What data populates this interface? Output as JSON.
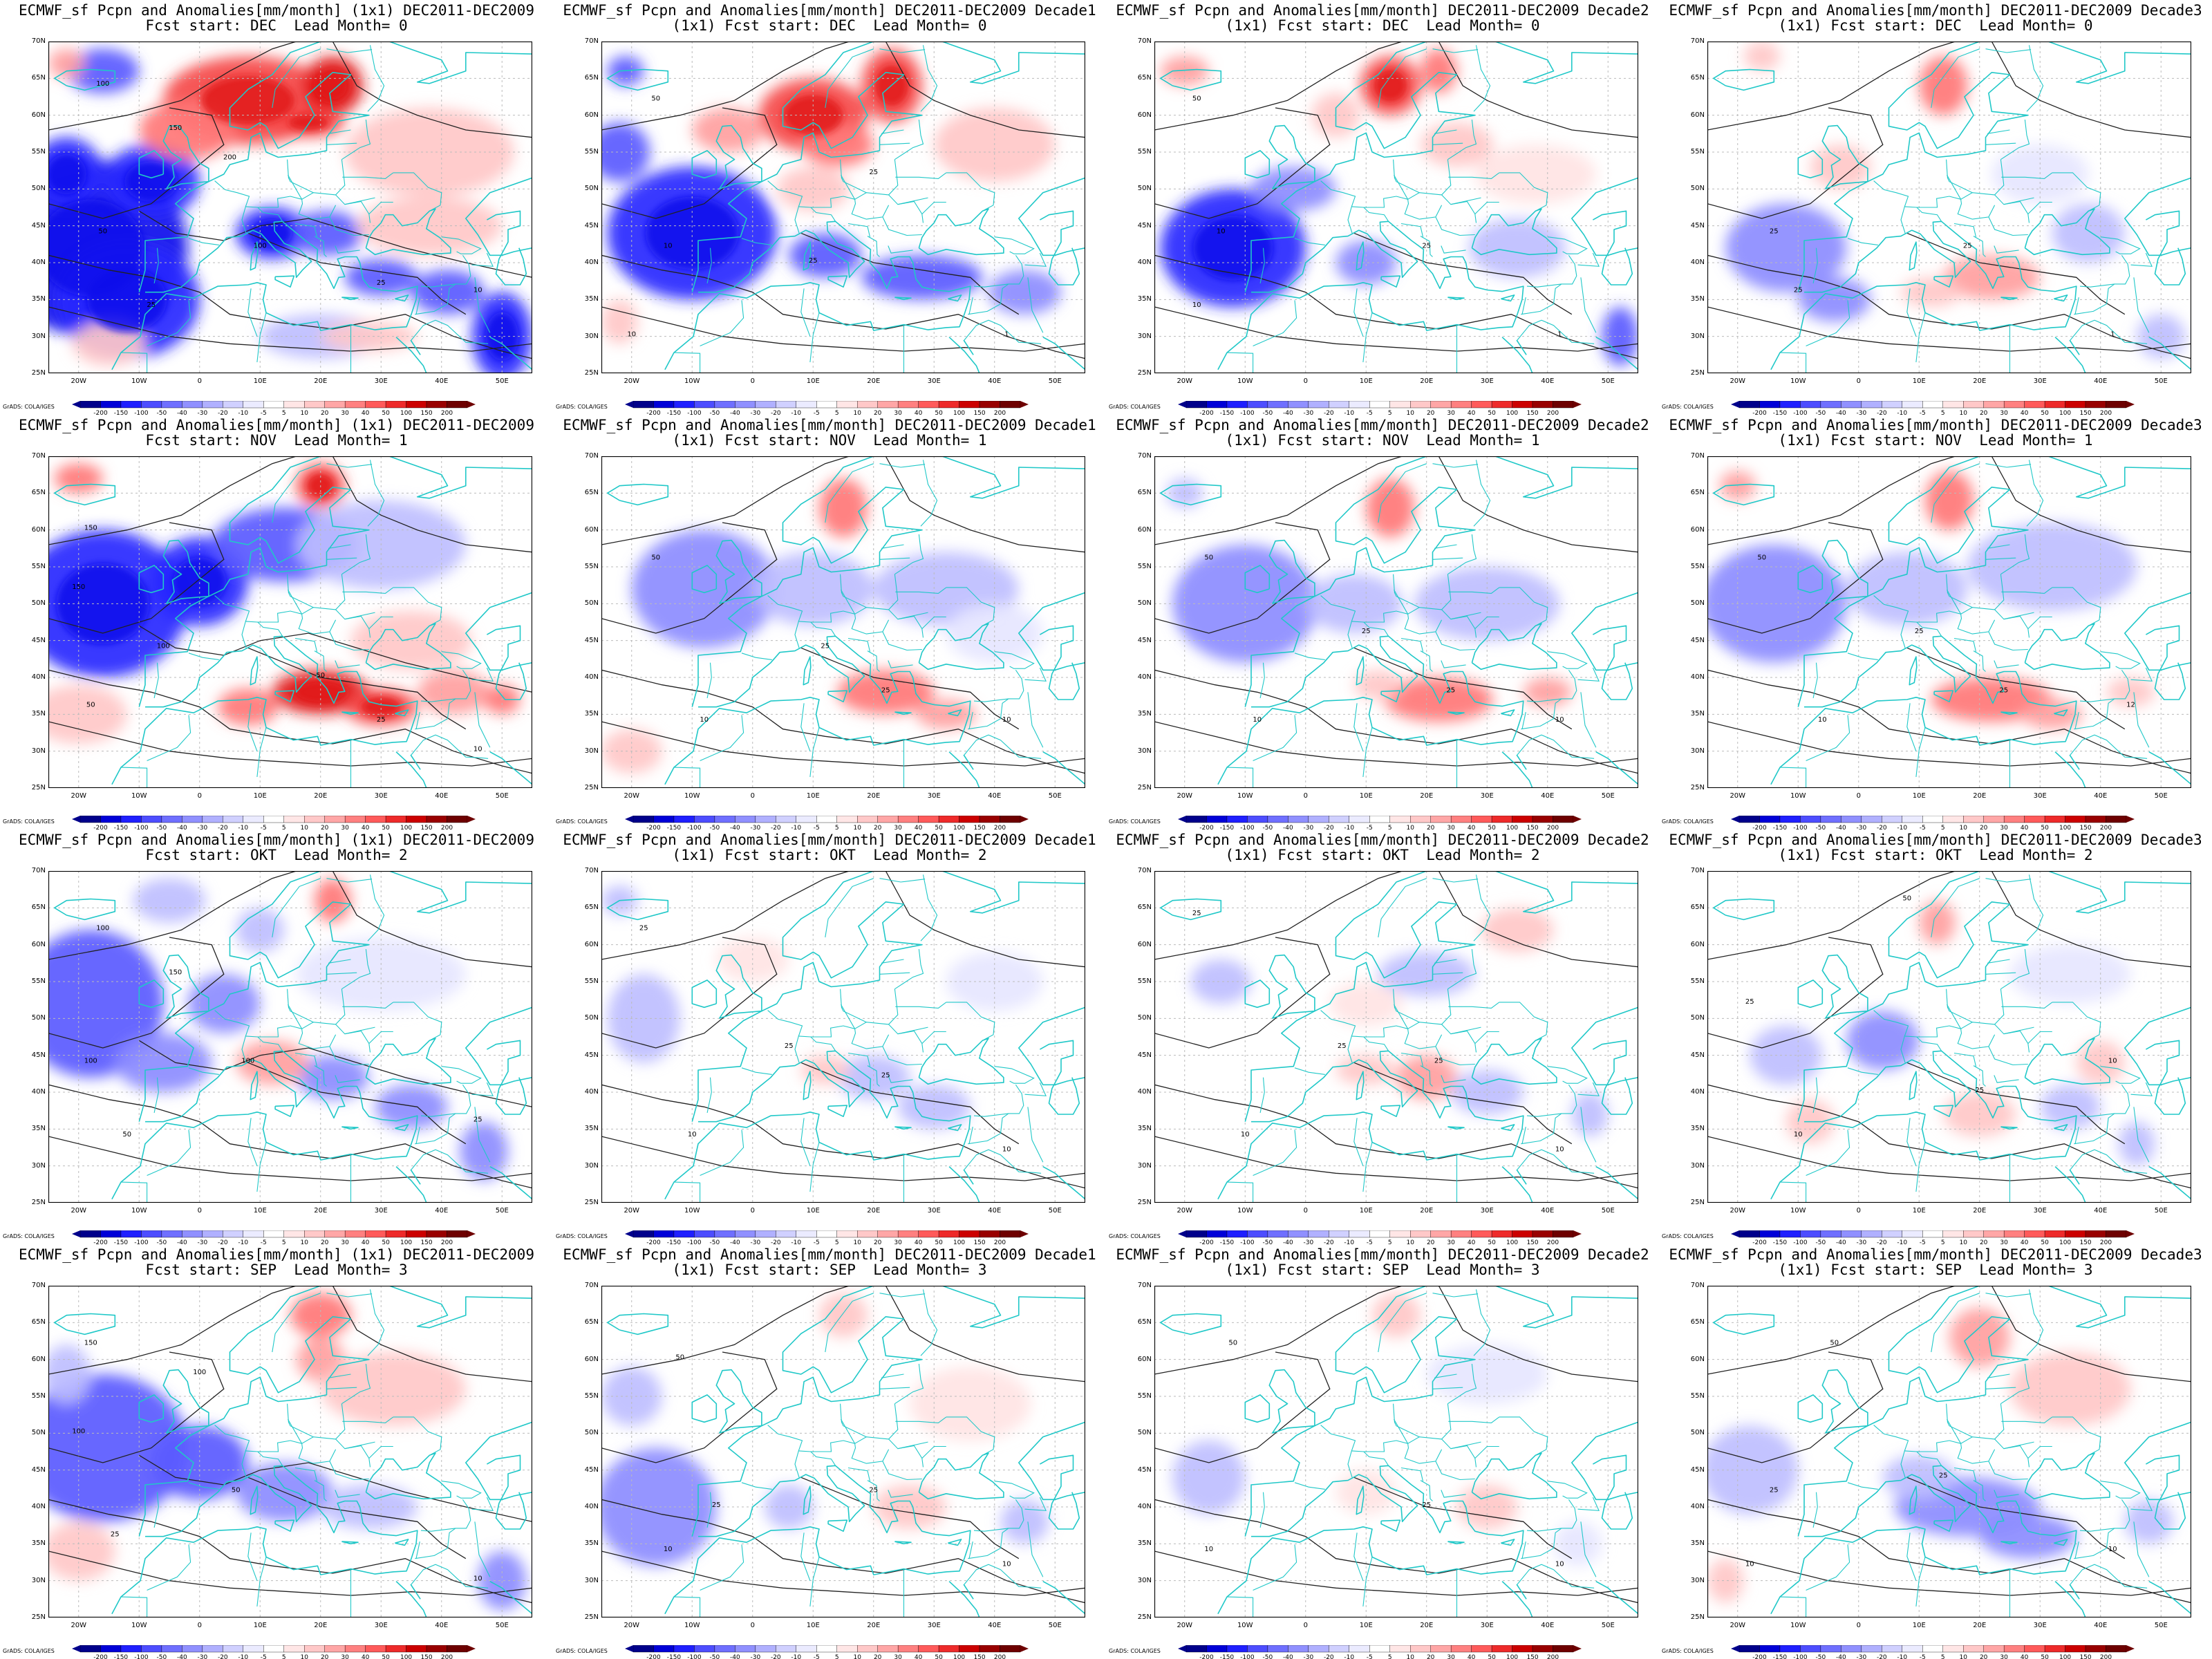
{
  "figure": {
    "panels": [
      {
        "line1": "ECMWF_sf Pcpn and Anomalies[mm/month] (1x1) DEC2011-DEC2009",
        "line2": "Fcst start: DEC  Lead Month= 0"
      },
      {
        "line1": "ECMWF_sf Pcpn and Anomalies[mm/month] DEC2011-DEC2009 Decade1",
        "line2": "(1x1) Fcst start: DEC  Lead Month= 0"
      },
      {
        "line1": "ECMWF_sf Pcpn and Anomalies[mm/month] DEC2011-DEC2009 Decade2",
        "line2": "(1x1) Fcst start: DEC  Lead Month= 0"
      },
      {
        "line1": "ECMWF_sf Pcpn and Anomalies[mm/month] DEC2011-DEC2009 Decade3",
        "line2": "(1x1) Fcst start: DEC  Lead Month= 0"
      },
      {
        "line1": "ECMWF_sf Pcpn and Anomalies[mm/month] (1x1) DEC2011-DEC2009",
        "line2": "Fcst start: NOV  Lead Month= 1"
      },
      {
        "line1": "ECMWF_sf Pcpn and Anomalies[mm/month] DEC2011-DEC2009 Decade1",
        "line2": "(1x1) Fcst start: NOV  Lead Month= 1"
      },
      {
        "line1": "ECMWF_sf Pcpn and Anomalies[mm/month] DEC2011-DEC2009 Decade2",
        "line2": "(1x1) Fcst start: NOV  Lead Month= 1"
      },
      {
        "line1": "ECMWF_sf Pcpn and Anomalies[mm/month] DEC2011-DEC2009 Decade3",
        "line2": "(1x1) Fcst start: NOV  Lead Month= 1"
      },
      {
        "line1": "ECMWF_sf Pcpn and Anomalies[mm/month] (1x1) DEC2011-DEC2009",
        "line2": "Fcst start: OKT  Lead Month= 2"
      },
      {
        "line1": "ECMWF_sf Pcpn and Anomalies[mm/month] DEC2011-DEC2009 Decade1",
        "line2": "(1x1) Fcst start: OKT  Lead Month= 2"
      },
      {
        "line1": "ECMWF_sf Pcpn and Anomalies[mm/month] DEC2011-DEC2009 Decade2",
        "line2": "(1x1) Fcst start: OKT  Lead Month= 2"
      },
      {
        "line1": "ECMWF_sf Pcpn and Anomalies[mm/month] DEC2011-DEC2009 Decade3",
        "line2": "(1x1) Fcst start: OKT  Lead Month= 2"
      },
      {
        "line1": "ECMWF_sf Pcpn and Anomalies[mm/month] (1x1) DEC2011-DEC2009",
        "line2": "Fcst start: SEP  Lead Month= 3"
      },
      {
        "line1": "ECMWF_sf Pcpn and Anomalies[mm/month] DEC2011-DEC2009 Decade1",
        "line2": "(1x1) Fcst start: SEP  Lead Month= 3"
      },
      {
        "line1": "ECMWF_sf Pcpn and Anomalies[mm/month] DEC2011-DEC2009 Decade2",
        "line2": "(1x1) Fcst start: SEP  Lead Month= 3"
      },
      {
        "line1": "ECMWF_sf Pcpn and Anomalies[mm/month] DEC2011-DEC2009 Decade3",
        "line2": "(1x1) Fcst start: SEP  Lead Month= 3"
      }
    ],
    "lat_labels": [
      "70N",
      "65N",
      "60N",
      "55N",
      "50N",
      "45N",
      "40N",
      "35N",
      "30N",
      "25N"
    ],
    "lon_labels": [
      "20W",
      "10W",
      "0",
      "10E",
      "20E",
      "30E",
      "40E",
      "50E"
    ],
    "colorbar_labels": [
      "-200",
      "-150",
      "-100",
      "-50",
      "-40",
      "-30",
      "-20",
      "-10",
      "-5",
      "5",
      "10",
      "20",
      "30",
      "40",
      "50",
      "100",
      "150",
      "200"
    ],
    "colorbar_colors": [
      "#00008b",
      "#0000d8",
      "#1f1fff",
      "#4d4dff",
      "#6f6fff",
      "#9090ff",
      "#b0b0ff",
      "#d0d0ff",
      "#ebebff",
      "#ffffff",
      "#ffe6e6",
      "#ffc8c8",
      "#ffa6a6",
      "#ff8080",
      "#ff5a5a",
      "#ee2a2a",
      "#cc0000",
      "#990000",
      "#6e0000"
    ],
    "credit": "GrADS: COLA/IGES",
    "colors": {
      "coast": "#20c8c8",
      "contour": "#222222",
      "grid": "#bbbbbb"
    }
  }
}
